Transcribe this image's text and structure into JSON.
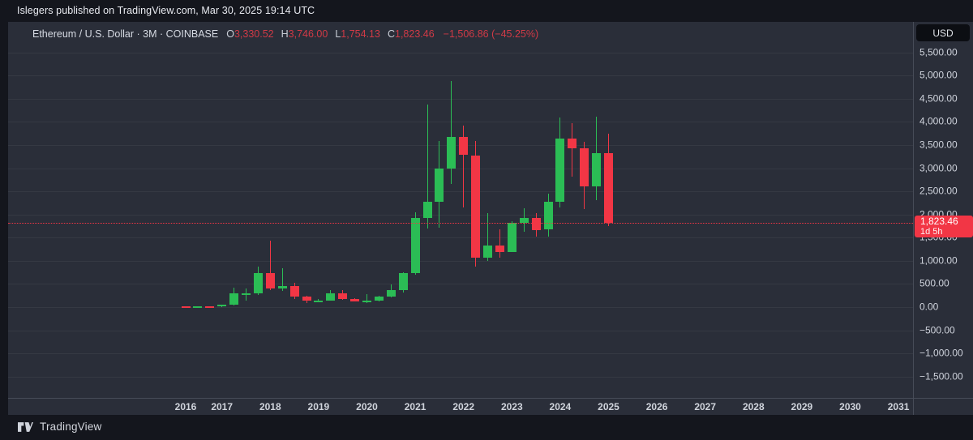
{
  "attribution": "Islegers published on TradingView.com, Mar 30, 2025 19:14 UTC",
  "legend": {
    "title": "Ethereum / U.S. Dollar · 3M · COINBASE",
    "ohlc": [
      {
        "label": "O",
        "value": "3,330.52"
      },
      {
        "label": "H",
        "value": "3,746.00"
      },
      {
        "label": "L",
        "value": "1,754.13"
      },
      {
        "label": "C",
        "value": "1,823.46"
      }
    ],
    "change": "−1,506.86 (−45.25%)"
  },
  "price_axis": {
    "currency": "USD",
    "labels": [
      {
        "text": "5,500.00",
        "value": 5500
      },
      {
        "text": "5,000.00",
        "value": 5000
      },
      {
        "text": "4,500.00",
        "value": 4500
      },
      {
        "text": "4,000.00",
        "value": 4000
      },
      {
        "text": "3,500.00",
        "value": 3500
      },
      {
        "text": "3,000.00",
        "value": 3000
      },
      {
        "text": "2,500.00",
        "value": 2500
      },
      {
        "text": "2,000.00",
        "value": 2000
      },
      {
        "text": "1,500.00",
        "value": 1500
      },
      {
        "text": "1,000.00",
        "value": 1000
      },
      {
        "text": "500.00",
        "value": 500
      },
      {
        "text": "0.00",
        "value": 0
      },
      {
        "text": "−500.00",
        "value": -500
      },
      {
        "text": "−1,000.00",
        "value": -1000
      },
      {
        "text": "−1,500.00",
        "value": -1500
      }
    ],
    "last_price": {
      "text": "1,823.46",
      "value": 1823.46,
      "countdown": "1d 5h"
    }
  },
  "time_axis": {
    "years": [
      2016,
      2017,
      2018,
      2019,
      2020,
      2021,
      2022,
      2023,
      2024,
      2025,
      2026,
      2027,
      2028,
      2029,
      2030,
      2031
    ]
  },
  "footer": {
    "brand": "TradingView"
  },
  "colors": {
    "up": "#2bbd55",
    "down": "#f23645",
    "accent_red": "#f23645",
    "panel_bg": "#2a2e39"
  },
  "chart_data": {
    "type": "candlestick",
    "title": "Ethereum / U.S. Dollar",
    "interval": "3M",
    "exchange": "COINBASE",
    "ylabel": "USD",
    "axis_range": {
      "price_min": -1500,
      "price_max": 5500,
      "price_step": 500,
      "year_min": 2016,
      "year_max": 2031
    },
    "grid": "horizontal-only",
    "last_close": 1823.46,
    "candles": [
      {
        "t": "2016-Q2",
        "o": 13.5,
        "h": 21.5,
        "l": 9.9,
        "c": 12.2
      },
      {
        "t": "2016-Q3",
        "o": 12.2,
        "h": 15.2,
        "l": 10.5,
        "c": 13.2
      },
      {
        "t": "2016-Q4",
        "o": 13.2,
        "h": 13.9,
        "l": 5.8,
        "c": 8.0
      },
      {
        "t": "2017-Q1",
        "o": 8.0,
        "h": 55.0,
        "l": 7.9,
        "c": 49.9
      },
      {
        "t": "2017-Q2",
        "o": 49.9,
        "h": 420.0,
        "l": 42.3,
        "c": 291.7
      },
      {
        "t": "2017-Q3",
        "o": 291.7,
        "h": 400.0,
        "l": 130.0,
        "c": 301.4
      },
      {
        "t": "2017-Q4",
        "o": 301.4,
        "h": 881.9,
        "l": 267.0,
        "c": 740.3
      },
      {
        "t": "2018-Q1",
        "o": 740.3,
        "h": 1432.9,
        "l": 358.0,
        "c": 396.6
      },
      {
        "t": "2018-Q2",
        "o": 396.6,
        "h": 839.0,
        "l": 355.0,
        "c": 452.3
      },
      {
        "t": "2018-Q3",
        "o": 452.3,
        "h": 524.8,
        "l": 167.0,
        "c": 233.0
      },
      {
        "t": "2018-Q4",
        "o": 233.0,
        "h": 249.0,
        "l": 81.8,
        "c": 133.4
      },
      {
        "t": "2019-Q1",
        "o": 133.4,
        "h": 167.3,
        "l": 99.0,
        "c": 141.5
      },
      {
        "t": "2019-Q2",
        "o": 141.5,
        "h": 366.8,
        "l": 140.0,
        "c": 290.7
      },
      {
        "t": "2019-Q3",
        "o": 290.7,
        "h": 363.0,
        "l": 150.0,
        "c": 180.9
      },
      {
        "t": "2019-Q4",
        "o": 180.9,
        "h": 197.7,
        "l": 116.3,
        "c": 129.6
      },
      {
        "t": "2020-Q1",
        "o": 129.6,
        "h": 288.0,
        "l": 86.0,
        "c": 132.6
      },
      {
        "t": "2020-Q2",
        "o": 132.6,
        "h": 253.6,
        "l": 131.0,
        "c": 225.5
      },
      {
        "t": "2020-Q3",
        "o": 225.5,
        "h": 488.8,
        "l": 216.0,
        "c": 359.8
      },
      {
        "t": "2020-Q4",
        "o": 359.8,
        "h": 754.3,
        "l": 322.0,
        "c": 737.8
      },
      {
        "t": "2021-Q1",
        "o": 737.8,
        "h": 2042.0,
        "l": 695.0,
        "c": 1918.3
      },
      {
        "t": "2021-Q2",
        "o": 1918.3,
        "h": 4380.0,
        "l": 1700.0,
        "c": 2274.5
      },
      {
        "t": "2021-Q3",
        "o": 2274.5,
        "h": 3590.0,
        "l": 1715.0,
        "c": 3001.0
      },
      {
        "t": "2021-Q4",
        "o": 3001.0,
        "h": 4878.3,
        "l": 2652.0,
        "c": 3682.6
      },
      {
        "t": "2022-Q1",
        "o": 3682.6,
        "h": 3920.0,
        "l": 2159.0,
        "c": 3281.6
      },
      {
        "t": "2022-Q2",
        "o": 3281.6,
        "h": 3580.0,
        "l": 879.8,
        "c": 1067.3
      },
      {
        "t": "2022-Q3",
        "o": 1067.3,
        "h": 2030.0,
        "l": 993.6,
        "c": 1327.6
      },
      {
        "t": "2022-Q4",
        "o": 1327.6,
        "h": 1675.0,
        "l": 1073.0,
        "c": 1196.7
      },
      {
        "t": "2023-Q1",
        "o": 1196.7,
        "h": 1856.0,
        "l": 1189.0,
        "c": 1820.9
      },
      {
        "t": "2023-Q2",
        "o": 1820.9,
        "h": 2141.0,
        "l": 1618.0,
        "c": 1933.9
      },
      {
        "t": "2023-Q3",
        "o": 1933.9,
        "h": 2029.0,
        "l": 1520.0,
        "c": 1671.0
      },
      {
        "t": "2023-Q4",
        "o": 1671.0,
        "h": 2445.0,
        "l": 1523.0,
        "c": 2281.9
      },
      {
        "t": "2024-Q1",
        "o": 2281.9,
        "h": 4093.8,
        "l": 2150.0,
        "c": 3647.4
      },
      {
        "t": "2024-Q2",
        "o": 3647.4,
        "h": 3977.0,
        "l": 2813.0,
        "c": 3437.3
      },
      {
        "t": "2024-Q3",
        "o": 3437.3,
        "h": 3562.0,
        "l": 2111.0,
        "c": 2602.8
      },
      {
        "t": "2024-Q4",
        "o": 2602.8,
        "h": 4106.8,
        "l": 2306.0,
        "c": 3332.4
      },
      {
        "t": "2025-Q1",
        "o": 3330.52,
        "h": 3746.0,
        "l": 1754.13,
        "c": 1823.46
      }
    ]
  }
}
